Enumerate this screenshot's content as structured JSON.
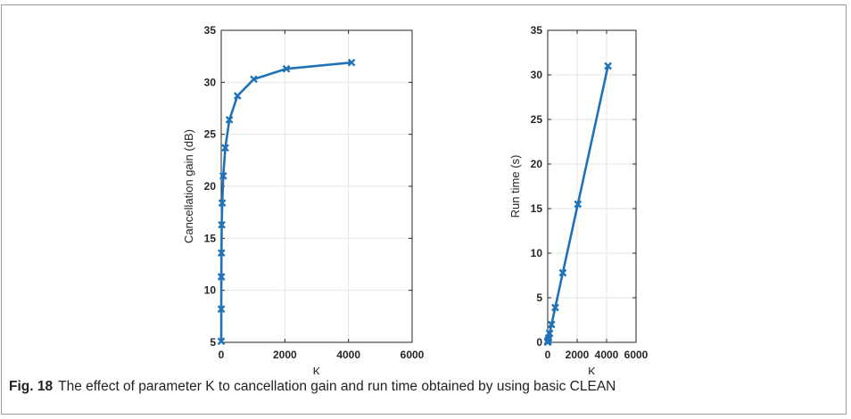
{
  "caption": {
    "label": "Fig. 18",
    "text": "The effect of parameter K to cancellation gain and run time obtained by using basic CLEAN"
  },
  "colors": {
    "series": "#1f72b8",
    "axis": "#262626",
    "grid": "#e6e6e6"
  },
  "chart_data": [
    {
      "type": "line",
      "xlabel": "K",
      "ylabel": "Cancellation gain (dB)",
      "xlim": [
        0,
        6000
      ],
      "ylim": [
        5,
        35
      ],
      "xticks": [
        0,
        2000,
        4000,
        6000
      ],
      "yticks": [
        5,
        10,
        15,
        20,
        25,
        30,
        35
      ],
      "grid": true,
      "marker": "x",
      "series": [
        {
          "x": [
            1,
            2,
            4,
            8,
            16,
            32,
            64,
            128,
            256,
            512,
            1024,
            2048,
            4096
          ],
          "y": [
            5.1,
            8.2,
            11.3,
            13.6,
            16.3,
            18.4,
            21.0,
            23.7,
            26.4,
            28.7,
            30.3,
            31.3,
            31.9
          ]
        }
      ]
    },
    {
      "type": "line",
      "xlabel": "K",
      "ylabel": "Run time (s)",
      "xlim": [
        0,
        6000
      ],
      "ylim": [
        0,
        35
      ],
      "xticks": [
        0,
        2000,
        4000,
        6000
      ],
      "yticks": [
        0,
        5,
        10,
        15,
        20,
        25,
        30,
        35
      ],
      "grid": true,
      "marker": "x",
      "series": [
        {
          "x": [
            1,
            2,
            4,
            8,
            16,
            32,
            64,
            128,
            256,
            512,
            1024,
            2048,
            4096
          ],
          "y": [
            0.02,
            0.03,
            0.05,
            0.08,
            0.13,
            0.25,
            0.5,
            1.0,
            2.0,
            3.9,
            7.8,
            15.5,
            31.0
          ]
        }
      ]
    }
  ]
}
